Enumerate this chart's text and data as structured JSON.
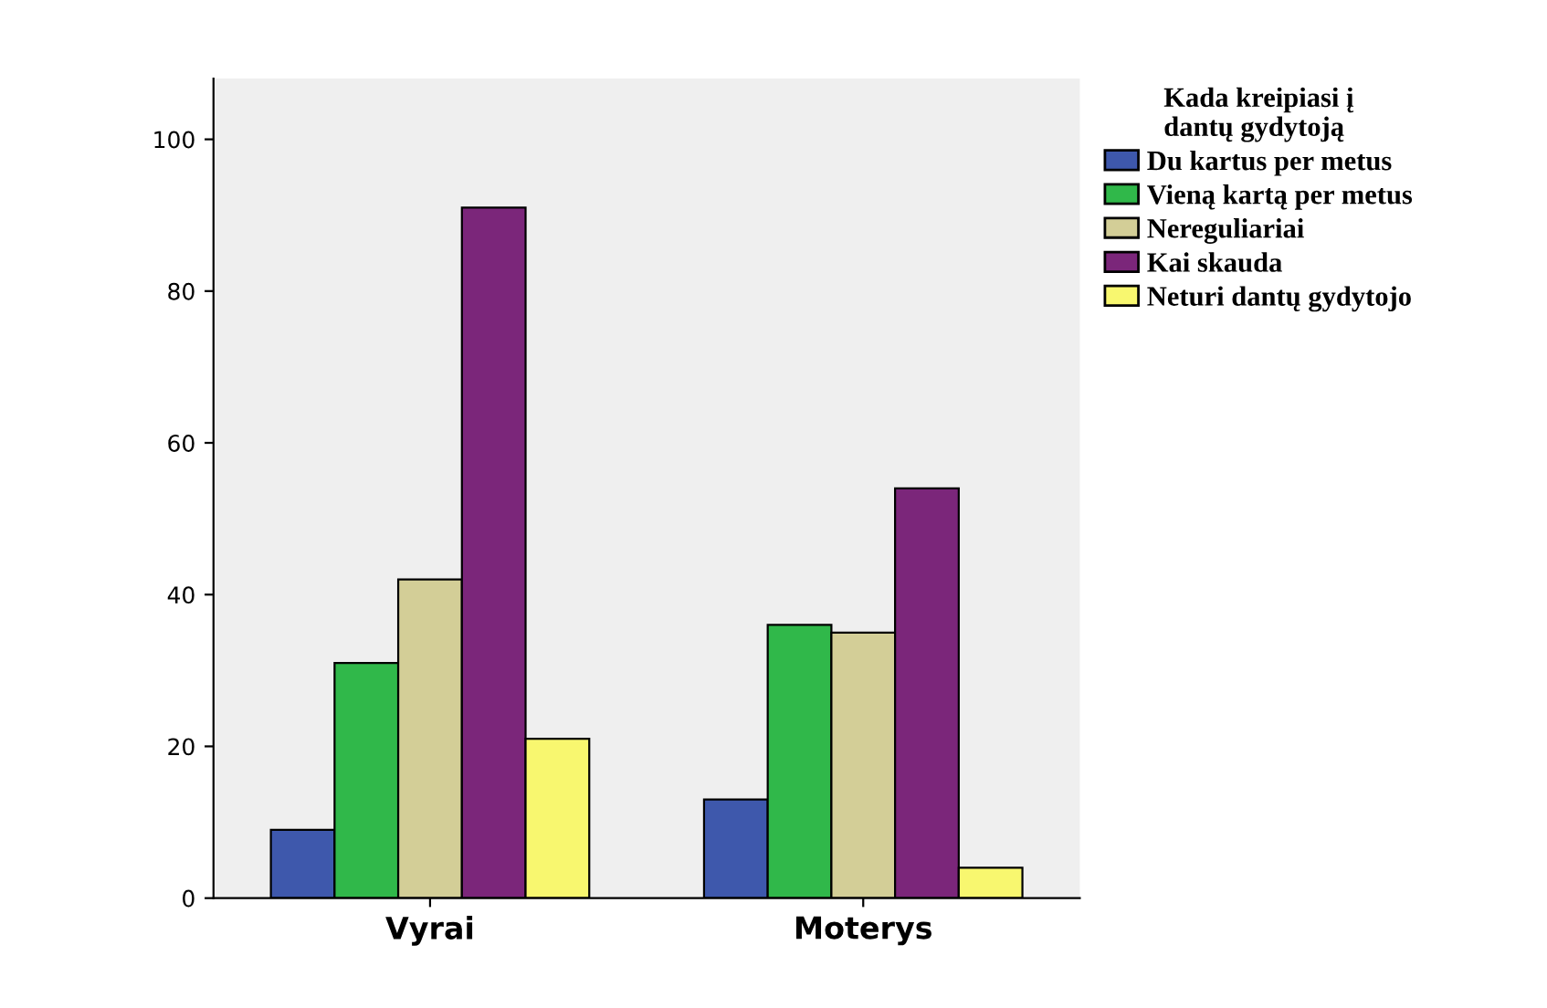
{
  "chart_data": {
    "type": "bar",
    "legend_title": "Kada kreipiasi į\ndantų gydytoją",
    "categories": [
      "Vyrai",
      "Moterys"
    ],
    "series": [
      {
        "name": "Du kartus per metus",
        "color": "#3e58ac",
        "values": [
          9,
          13
        ]
      },
      {
        "name": "Vieną kartą per metus",
        "color": "#30b84a",
        "values": [
          31,
          36
        ]
      },
      {
        "name": "Nereguliariai",
        "color": "#d3ce97",
        "values": [
          42,
          35
        ]
      },
      {
        "name": "Kai skauda",
        "color": "#7b267a",
        "values": [
          91,
          54
        ]
      },
      {
        "name": "Neturi dantų gydytojo",
        "color": "#f8f76f",
        "values": [
          21,
          4
        ]
      }
    ],
    "ylim": [
      0,
      108
    ],
    "yticks": [
      0,
      20,
      40,
      60,
      80,
      100
    ],
    "grid": false,
    "legend": "right"
  }
}
